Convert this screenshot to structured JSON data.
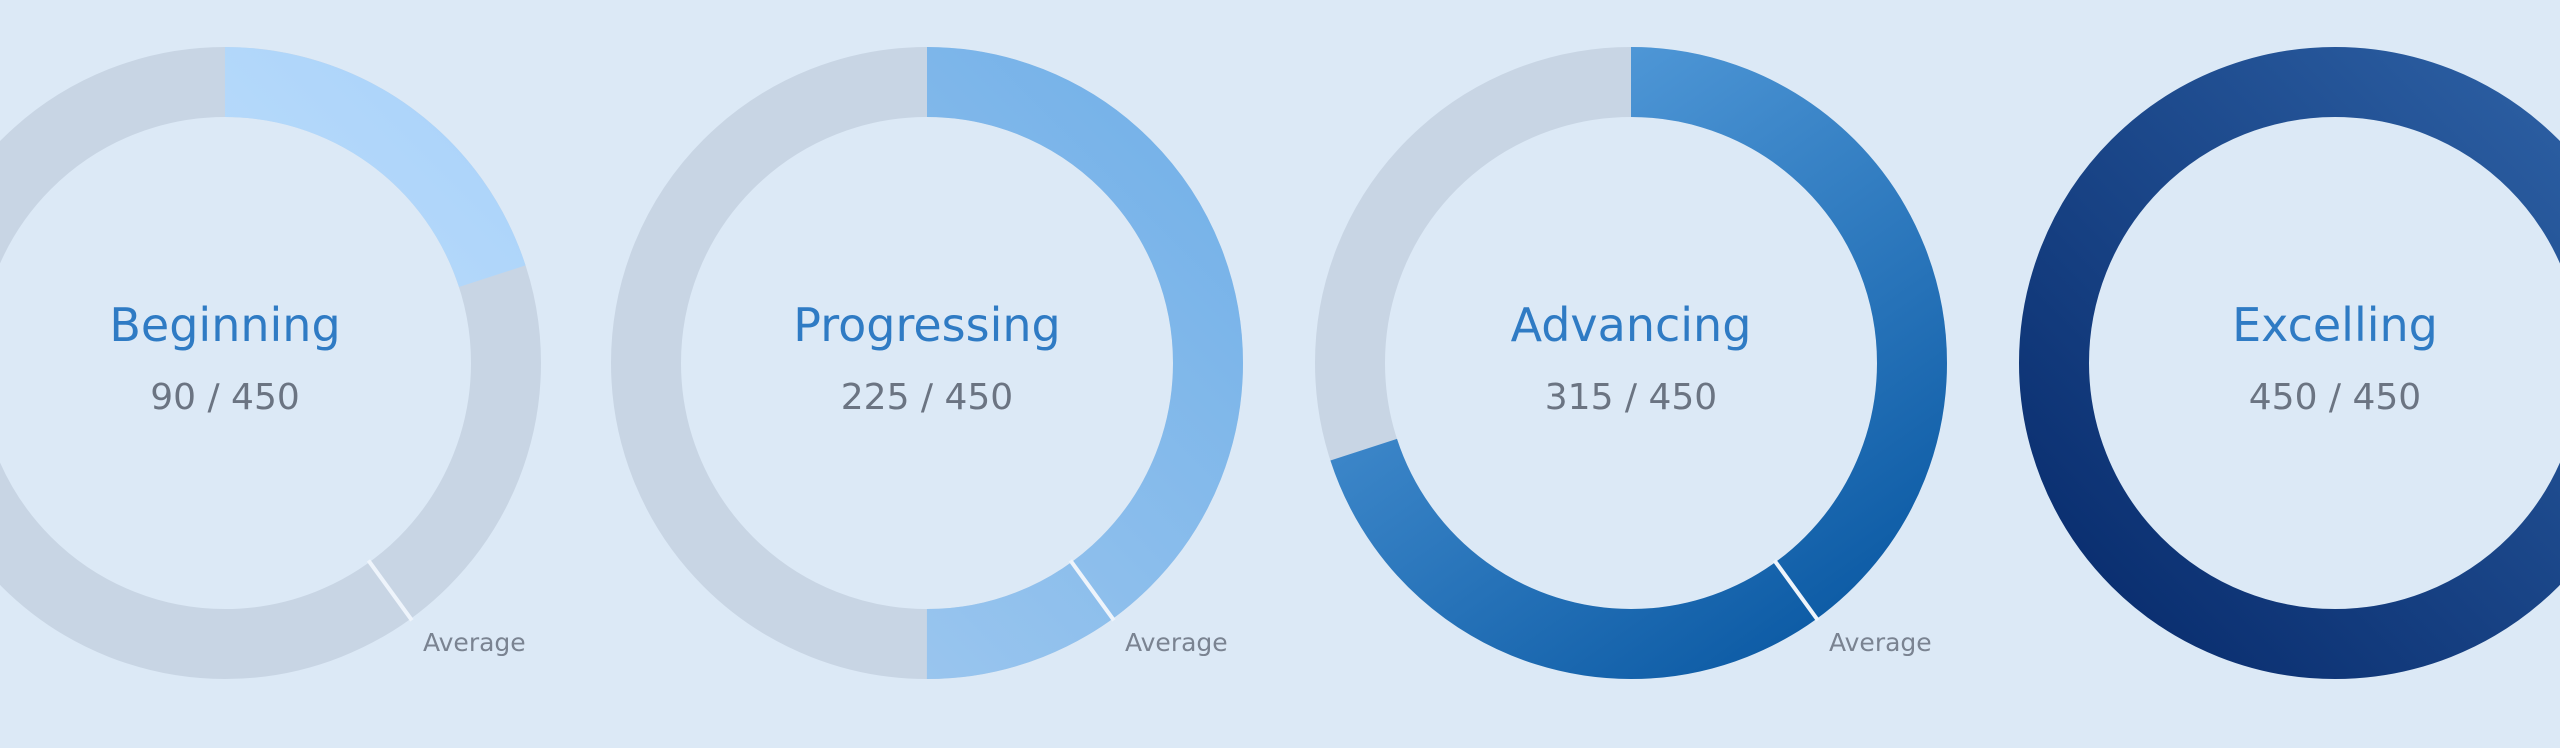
{
  "chart_data": [
    {
      "type": "donut",
      "title": "Beginning",
      "value": 90,
      "value_label": "90 / 450",
      "max": 450,
      "average": 180,
      "average_label": "Average",
      "colors": [
        "#d2eaff",
        "#a9d2f9"
      ]
    },
    {
      "type": "donut",
      "title": "Progressing",
      "value": 225,
      "value_label": "225 / 450",
      "max": 450,
      "average": 180,
      "average_label": "Average",
      "colors": [
        "#a4cbf0",
        "#72b0e8"
      ]
    },
    {
      "type": "donut",
      "title": "Advancing",
      "value": 315,
      "value_label": "315 / 450",
      "max": 450,
      "average": 180,
      "average_label": "Average",
      "colors": [
        "#0655a0",
        "#529ad9"
      ]
    },
    {
      "type": "donut",
      "title": "Excelling",
      "value": 450,
      "value_label": "450 / 450",
      "max": 450,
      "colors": [
        "#072a6b",
        "#2e62a6"
      ]
    }
  ]
}
